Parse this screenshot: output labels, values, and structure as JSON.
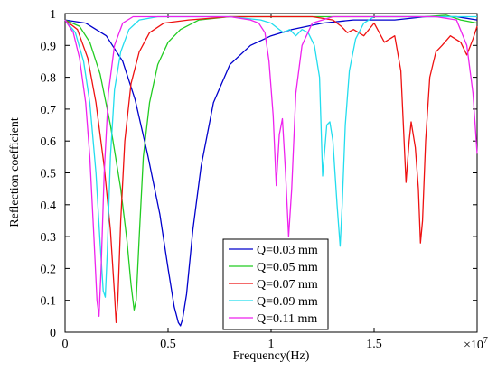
{
  "chart_data": {
    "type": "line",
    "xlabel": "Frequency(Hz)",
    "ylabel": "Reflection coefficient",
    "x_multiplier_label": "×10",
    "x_multiplier_exp": "7",
    "xlim": [
      0,
      20000000
    ],
    "ylim": [
      0,
      1
    ],
    "x_ticks": [
      0,
      5000000,
      10000000,
      15000000
    ],
    "x_tick_labels": [
      "0",
      "0.5",
      "1",
      "1.5"
    ],
    "y_ticks": [
      0,
      0.1,
      0.2,
      0.3,
      0.4,
      0.5,
      0.6,
      0.7,
      0.8,
      0.9,
      1
    ],
    "y_tick_labels": [
      "0",
      "0.1",
      "0.2",
      "0.3",
      "0.4",
      "0.5",
      "0.6",
      "0.7",
      "0.8",
      "0.9",
      "1"
    ],
    "grid": false,
    "legend_position": "bottom-center",
    "series": [
      {
        "name": "Q=0.03 mm",
        "color": "#0000cc",
        "points": [
          [
            0,
            0.98
          ],
          [
            1000000,
            0.97
          ],
          [
            2000000,
            0.93
          ],
          [
            2800000,
            0.85
          ],
          [
            3400000,
            0.73
          ],
          [
            4000000,
            0.56
          ],
          [
            4600000,
            0.37
          ],
          [
            5000000,
            0.2
          ],
          [
            5300000,
            0.08
          ],
          [
            5500000,
            0.03
          ],
          [
            5600000,
            0.02
          ],
          [
            5700000,
            0.04
          ],
          [
            5900000,
            0.12
          ],
          [
            6200000,
            0.32
          ],
          [
            6600000,
            0.52
          ],
          [
            7200000,
            0.72
          ],
          [
            8000000,
            0.84
          ],
          [
            9000000,
            0.9
          ],
          [
            10000000,
            0.93
          ],
          [
            11000000,
            0.95
          ],
          [
            12500000,
            0.97
          ],
          [
            14000000,
            0.98
          ],
          [
            16000000,
            0.98
          ],
          [
            17500000,
            0.99
          ],
          [
            19000000,
            0.99
          ],
          [
            20000000,
            0.98
          ]
        ]
      },
      {
        "name": "Q=0.05 mm",
        "color": "#22cc22",
        "points": [
          [
            0,
            0.98
          ],
          [
            700000,
            0.96
          ],
          [
            1200000,
            0.91
          ],
          [
            1700000,
            0.81
          ],
          [
            2200000,
            0.65
          ],
          [
            2700000,
            0.45
          ],
          [
            3000000,
            0.29
          ],
          [
            3200000,
            0.15
          ],
          [
            3350000,
            0.07
          ],
          [
            3450000,
            0.1
          ],
          [
            3600000,
            0.3
          ],
          [
            3800000,
            0.55
          ],
          [
            4100000,
            0.72
          ],
          [
            4500000,
            0.84
          ],
          [
            5000000,
            0.91
          ],
          [
            5600000,
            0.95
          ],
          [
            6500000,
            0.98
          ],
          [
            8000000,
            0.99
          ],
          [
            10000000,
            0.99
          ],
          [
            13000000,
            0.99
          ],
          [
            16000000,
            0.99
          ],
          [
            17500000,
            0.99
          ],
          [
            18500000,
            0.995
          ],
          [
            19200000,
            0.98
          ],
          [
            20000000,
            0.97
          ]
        ]
      },
      {
        "name": "Q=0.07 mm",
        "color": "#ee1111",
        "points": [
          [
            0,
            0.98
          ],
          [
            600000,
            0.95
          ],
          [
            1100000,
            0.86
          ],
          [
            1500000,
            0.72
          ],
          [
            1900000,
            0.52
          ],
          [
            2200000,
            0.32
          ],
          [
            2400000,
            0.12
          ],
          [
            2480000,
            0.03
          ],
          [
            2560000,
            0.1
          ],
          [
            2700000,
            0.35
          ],
          [
            2900000,
            0.6
          ],
          [
            3200000,
            0.78
          ],
          [
            3600000,
            0.88
          ],
          [
            4100000,
            0.94
          ],
          [
            4800000,
            0.97
          ],
          [
            6000000,
            0.98
          ],
          [
            8000000,
            0.99
          ],
          [
            10000000,
            0.99
          ],
          [
            12000000,
            0.99
          ],
          [
            13000000,
            0.98
          ],
          [
            13400000,
            0.96
          ],
          [
            13700000,
            0.94
          ],
          [
            14000000,
            0.95
          ],
          [
            14500000,
            0.93
          ],
          [
            15000000,
            0.97
          ],
          [
            15500000,
            0.91
          ],
          [
            16000000,
            0.93
          ],
          [
            16300000,
            0.82
          ],
          [
            16550000,
            0.47
          ],
          [
            16700000,
            0.6
          ],
          [
            16800000,
            0.66
          ],
          [
            17000000,
            0.58
          ],
          [
            17150000,
            0.45
          ],
          [
            17250000,
            0.28
          ],
          [
            17350000,
            0.35
          ],
          [
            17500000,
            0.6
          ],
          [
            17700000,
            0.8
          ],
          [
            18000000,
            0.88
          ],
          [
            18300000,
            0.9
          ],
          [
            18700000,
            0.93
          ],
          [
            19200000,
            0.91
          ],
          [
            19500000,
            0.87
          ],
          [
            19800000,
            0.92
          ],
          [
            20000000,
            0.96
          ]
        ]
      },
      {
        "name": "Q=0.09 mm",
        "color": "#22ddee",
        "points": [
          [
            0,
            0.98
          ],
          [
            500000,
            0.94
          ],
          [
            900000,
            0.85
          ],
          [
            1200000,
            0.72
          ],
          [
            1500000,
            0.5
          ],
          [
            1700000,
            0.28
          ],
          [
            1850000,
            0.13
          ],
          [
            1950000,
            0.11
          ],
          [
            2050000,
            0.25
          ],
          [
            2200000,
            0.55
          ],
          [
            2400000,
            0.76
          ],
          [
            2700000,
            0.88
          ],
          [
            3100000,
            0.95
          ],
          [
            3600000,
            0.98
          ],
          [
            4500000,
            0.99
          ],
          [
            6000000,
            0.99
          ],
          [
            8000000,
            0.99
          ],
          [
            9500000,
            0.98
          ],
          [
            10000000,
            0.97
          ],
          [
            10400000,
            0.95
          ],
          [
            10600000,
            0.94
          ],
          [
            10900000,
            0.95
          ],
          [
            11200000,
            0.93
          ],
          [
            11500000,
            0.95
          ],
          [
            11800000,
            0.94
          ],
          [
            12100000,
            0.9
          ],
          [
            12350000,
            0.8
          ],
          [
            12500000,
            0.49
          ],
          [
            12600000,
            0.57
          ],
          [
            12700000,
            0.65
          ],
          [
            12850000,
            0.66
          ],
          [
            13000000,
            0.6
          ],
          [
            13200000,
            0.4
          ],
          [
            13350000,
            0.27
          ],
          [
            13450000,
            0.4
          ],
          [
            13600000,
            0.65
          ],
          [
            13800000,
            0.82
          ],
          [
            14100000,
            0.92
          ],
          [
            14500000,
            0.97
          ],
          [
            15000000,
            0.99
          ],
          [
            16000000,
            0.99
          ],
          [
            18000000,
            0.99
          ],
          [
            20000000,
            0.99
          ]
        ]
      },
      {
        "name": "Q=0.11 mm",
        "color": "#ee22ee",
        "points": [
          [
            0,
            0.98
          ],
          [
            400000,
            0.94
          ],
          [
            700000,
            0.86
          ],
          [
            1000000,
            0.72
          ],
          [
            1200000,
            0.55
          ],
          [
            1400000,
            0.3
          ],
          [
            1550000,
            0.1
          ],
          [
            1650000,
            0.05
          ],
          [
            1750000,
            0.2
          ],
          [
            1900000,
            0.5
          ],
          [
            2100000,
            0.75
          ],
          [
            2400000,
            0.9
          ],
          [
            2800000,
            0.97
          ],
          [
            3300000,
            0.99
          ],
          [
            4000000,
            0.99
          ],
          [
            6000000,
            0.99
          ],
          [
            8000000,
            0.99
          ],
          [
            9000000,
            0.98
          ],
          [
            9400000,
            0.97
          ],
          [
            9700000,
            0.94
          ],
          [
            9900000,
            0.85
          ],
          [
            10100000,
            0.68
          ],
          [
            10250000,
            0.46
          ],
          [
            10400000,
            0.62
          ],
          [
            10550000,
            0.67
          ],
          [
            10700000,
            0.5
          ],
          [
            10850000,
            0.3
          ],
          [
            11000000,
            0.45
          ],
          [
            11200000,
            0.75
          ],
          [
            11500000,
            0.9
          ],
          [
            12000000,
            0.97
          ],
          [
            13000000,
            0.99
          ],
          [
            15000000,
            0.99
          ],
          [
            17000000,
            0.99
          ],
          [
            18000000,
            0.99
          ],
          [
            19000000,
            0.98
          ],
          [
            19500000,
            0.9
          ],
          [
            19800000,
            0.75
          ],
          [
            20000000,
            0.56
          ]
        ]
      }
    ]
  }
}
